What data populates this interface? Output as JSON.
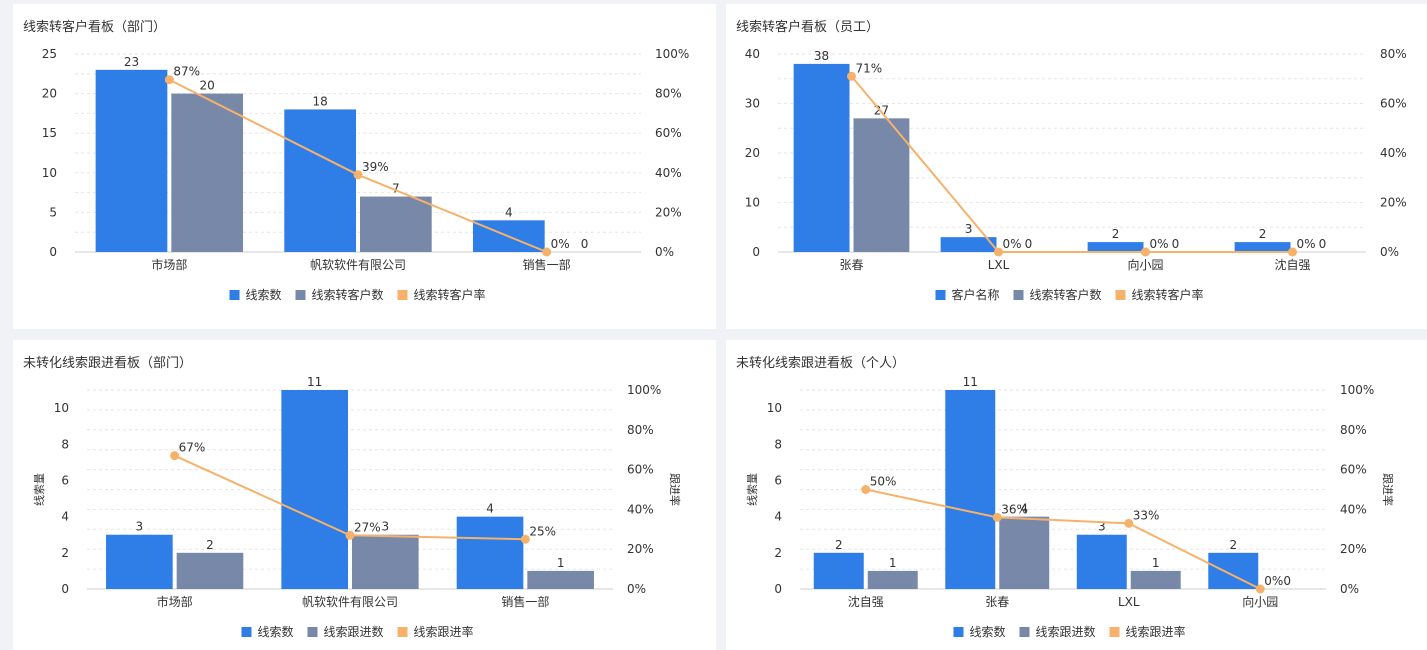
{
  "colors": {
    "series_primary": "#2f7de6",
    "series_secondary": "#7888a8",
    "rate_line": "#f6b26b",
    "grid": "#e6e6e6",
    "axis_text": "#333333"
  },
  "chart_data": [
    {
      "id": "dept-conversion",
      "type": "bar",
      "title": "线索转客户看板（部门）",
      "categories": [
        "市场部",
        "帆软软件有限公司",
        "销售一部"
      ],
      "series": [
        {
          "name": "线索数",
          "type": "bar",
          "axis": "left",
          "values": [
            23,
            18,
            4
          ]
        },
        {
          "name": "线索转客户数",
          "type": "bar",
          "axis": "left",
          "values": [
            20,
            7,
            0
          ]
        },
        {
          "name": "线索转客户率",
          "type": "line",
          "axis": "right",
          "values": [
            87,
            39,
            0
          ]
        }
      ],
      "ylim": [
        0,
        25
      ],
      "yticks": [
        0,
        5,
        10,
        15,
        20,
        25
      ],
      "y2lim": [
        0,
        100
      ],
      "y2ticks": [
        0,
        20,
        40,
        60,
        80,
        100
      ],
      "y2unit": "%",
      "ylabel": "",
      "y2label": "",
      "grid": true,
      "legend": "bottom"
    },
    {
      "id": "staff-conversion",
      "type": "bar",
      "title": "线索转客户看板（员工）",
      "categories": [
        "张春",
        "LXL",
        "向小园",
        "沈自强"
      ],
      "series": [
        {
          "name": "客户名称",
          "type": "bar",
          "axis": "left",
          "values": [
            38,
            3,
            2,
            2
          ]
        },
        {
          "name": "线索转客户数",
          "type": "bar",
          "axis": "left",
          "values": [
            27,
            0,
            0,
            0
          ]
        },
        {
          "name": "线索转客户率",
          "type": "line",
          "axis": "right",
          "values": [
            71,
            0,
            0,
            0
          ]
        }
      ],
      "ylim": [
        0,
        40
      ],
      "yticks": [
        0,
        10,
        20,
        30,
        40
      ],
      "y2lim": [
        0,
        80
      ],
      "y2ticks": [
        0,
        20,
        40,
        60,
        80
      ],
      "y2unit": "%",
      "ylabel": "",
      "y2label": "",
      "grid": true,
      "legend": "bottom"
    },
    {
      "id": "dept-followup",
      "type": "bar",
      "title": "未转化线索跟进看板（部门）",
      "categories": [
        "市场部",
        "帆软软件有限公司",
        "销售一部"
      ],
      "series": [
        {
          "name": "线索数",
          "type": "bar",
          "axis": "left",
          "values": [
            3,
            11,
            4
          ]
        },
        {
          "name": "线索跟进数",
          "type": "bar",
          "axis": "left",
          "values": [
            2,
            3,
            1
          ]
        },
        {
          "name": "线索跟进率",
          "type": "line",
          "axis": "right",
          "values": [
            67,
            27,
            25
          ]
        }
      ],
      "ylim": [
        0,
        11
      ],
      "yticks": [
        0,
        2,
        4,
        6,
        8,
        10
      ],
      "y2lim": [
        0,
        100
      ],
      "y2ticks": [
        0,
        20,
        40,
        60,
        80,
        100
      ],
      "y2unit": "%",
      "ylabel": "线索量",
      "y2label": "跟进率",
      "grid": true,
      "legend": "bottom"
    },
    {
      "id": "person-followup",
      "type": "bar",
      "title": "未转化线索跟进看板（个人）",
      "categories": [
        "沈自强",
        "张春",
        "LXL",
        "向小园"
      ],
      "series": [
        {
          "name": "线索数",
          "type": "bar",
          "axis": "left",
          "values": [
            2,
            11,
            3,
            2
          ]
        },
        {
          "name": "线索跟进数",
          "type": "bar",
          "axis": "left",
          "values": [
            1,
            4,
            1,
            0
          ]
        },
        {
          "name": "线索跟进率",
          "type": "line",
          "axis": "right",
          "values": [
            50,
            36,
            33,
            0
          ]
        }
      ],
      "ylim": [
        0,
        11
      ],
      "yticks": [
        0,
        2,
        4,
        6,
        8,
        10
      ],
      "y2lim": [
        0,
        100
      ],
      "y2ticks": [
        0,
        20,
        40,
        60,
        80,
        100
      ],
      "y2unit": "%",
      "ylabel": "线索量",
      "y2label": "跟进率",
      "grid": true,
      "legend": "bottom"
    }
  ]
}
